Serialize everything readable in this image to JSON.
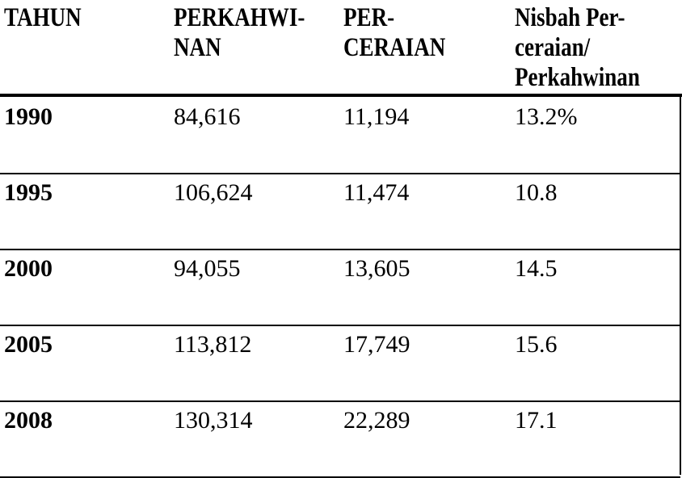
{
  "table": {
    "headers": [
      "TAHUN",
      "PERKAHWI-\nNAN",
      "PER-\nCERAIAN",
      "Nisbah Per-\nceraian/\nPerkahwinan"
    ],
    "rows": [
      [
        "1990",
        "84,616",
        "11,194",
        "13.2%"
      ],
      [
        "1995",
        "106,624",
        "11,474",
        "10.8"
      ],
      [
        "2000",
        "94,055",
        "13,605",
        "14.5"
      ],
      [
        "2005",
        "113,812",
        "17,749",
        "15.6"
      ],
      [
        "2008",
        "130,314",
        "22,289",
        "17.1"
      ]
    ]
  }
}
